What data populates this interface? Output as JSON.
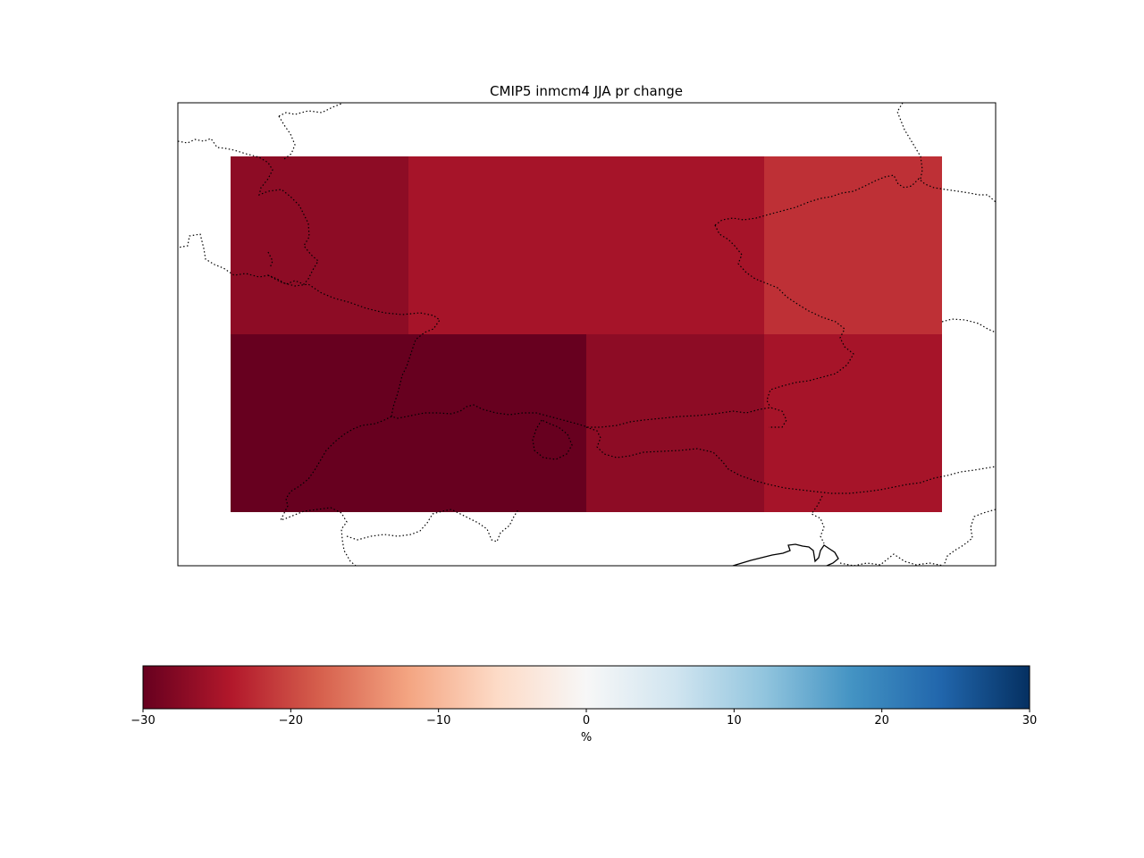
{
  "chart_data": {
    "type": "heatmap",
    "title": "CMIP5 inmcm4 JJA pr change",
    "grid": {
      "rows": 2,
      "cols": 4,
      "values": [
        [
          -27,
          -25,
          -25,
          -22
        ],
        [
          -30,
          -30,
          -27,
          -25
        ]
      ]
    },
    "colorbar": {
      "label": "%",
      "min": -30,
      "max": 30,
      "ticks": [
        -30,
        -20,
        -10,
        0,
        10,
        20,
        30
      ],
      "tick_labels": [
        "−30",
        "−20",
        "−10",
        "0",
        "10",
        "20",
        "30"
      ],
      "colormap": "RdBu",
      "stops": [
        "#67001f",
        "#b2182b",
        "#d6604d",
        "#f4a582",
        "#fddbc7",
        "#f7f7f7",
        "#d1e5f0",
        "#92c5de",
        "#4393c3",
        "#2166ac",
        "#053061"
      ],
      "orientation": "horizontal"
    },
    "map": {
      "borders_style": "dotted",
      "coastlines_style": "solid"
    }
  }
}
